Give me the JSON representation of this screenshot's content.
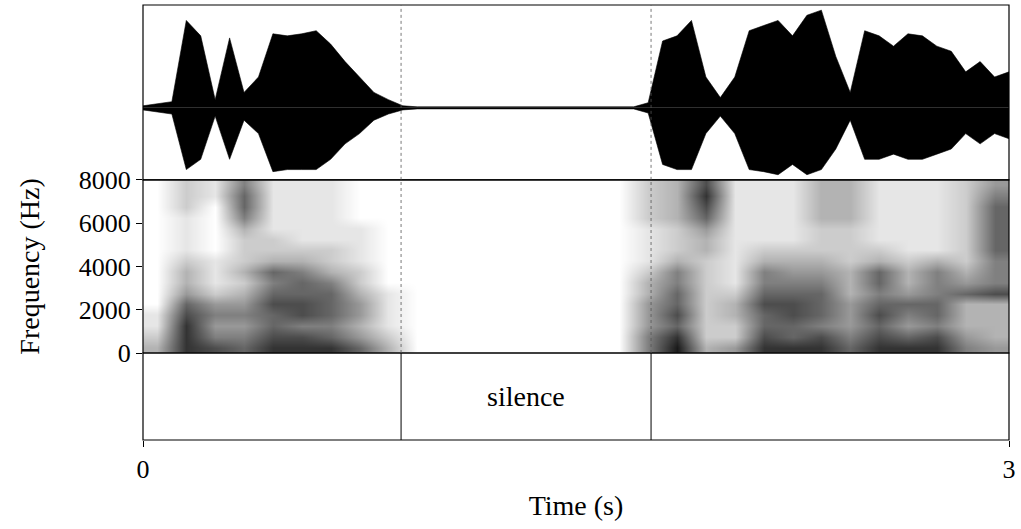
{
  "chart_data": [
    {
      "type": "area",
      "color": "#000000",
      "xlim": [
        0,
        3
      ],
      "ylim": [
        -0.7,
        1
      ],
      "tick_labels": false,
      "x": [
        0,
        0.05,
        0.1,
        0.15,
        0.2,
        0.25,
        0.3,
        0.35,
        0.4,
        0.45,
        0.5,
        0.55,
        0.6,
        0.65,
        0.7,
        0.75,
        0.8,
        0.85,
        0.9,
        0.95,
        1,
        1.05,
        1.1,
        1.15,
        1.2,
        1.25,
        1.3,
        1.35,
        1.4,
        1.45,
        1.5,
        1.55,
        1.6,
        1.65,
        1.7,
        1.75,
        1.8,
        1.85,
        1.9,
        1.95,
        2,
        2.05,
        2.1,
        2.15,
        2.2,
        2.25,
        2.3,
        2.35,
        2.4,
        2.45,
        2.5,
        2.55,
        2.6,
        2.65,
        2.7,
        2.75,
        2.8,
        2.85,
        2.9,
        2.95,
        3
      ],
      "max": [
        0.02,
        0.04,
        0.06,
        0.85,
        0.7,
        0.08,
        0.68,
        0.15,
        0.3,
        0.72,
        0.7,
        0.72,
        0.75,
        0.62,
        0.45,
        0.3,
        0.15,
        0.08,
        0.02,
        0.01,
        0.01,
        0.01,
        0.01,
        0.01,
        0.01,
        0.01,
        0.01,
        0.01,
        0.01,
        0.01,
        0.01,
        0.01,
        0.01,
        0.01,
        0.01,
        0.05,
        0.65,
        0.7,
        0.85,
        0.3,
        0.1,
        0.3,
        0.75,
        0.8,
        0.85,
        0.7,
        0.9,
        0.95,
        0.5,
        0.15,
        0.75,
        0.7,
        0.6,
        0.72,
        0.7,
        0.6,
        0.55,
        0.35,
        0.45,
        0.3,
        0.35
      ],
      "min": [
        -0.02,
        -0.04,
        -0.06,
        -0.6,
        -0.5,
        -0.08,
        -0.5,
        -0.12,
        -0.25,
        -0.62,
        -0.6,
        -0.6,
        -0.6,
        -0.5,
        -0.35,
        -0.25,
        -0.12,
        -0.06,
        -0.02,
        -0.01,
        -0.01,
        -0.01,
        -0.01,
        -0.01,
        -0.01,
        -0.01,
        -0.01,
        -0.01,
        -0.01,
        -0.01,
        -0.01,
        -0.01,
        -0.01,
        -0.01,
        -0.01,
        -0.05,
        -0.55,
        -0.6,
        -0.6,
        -0.25,
        -0.08,
        -0.25,
        -0.6,
        -0.62,
        -0.65,
        -0.55,
        -0.65,
        -0.6,
        -0.4,
        -0.12,
        -0.5,
        -0.5,
        -0.45,
        -0.5,
        -0.5,
        -0.45,
        -0.4,
        -0.25,
        -0.35,
        -0.25,
        -0.3
      ]
    },
    {
      "type": "heatmap",
      "y_label": "Frequency (Hz)",
      "xlim": [
        0,
        3
      ],
      "ylim": [
        0,
        8000
      ],
      "yticks": [
        0,
        2000,
        4000,
        6000,
        8000
      ],
      "tick_labels": "y",
      "color_range": [
        0,
        10
      ],
      "x": [
        0.05,
        0.15,
        0.25,
        0.35,
        0.45,
        0.55,
        0.65,
        0.75,
        0.85,
        0.95,
        1.05,
        1.15,
        1.25,
        1.35,
        1.45,
        1.55,
        1.65,
        1.75,
        1.85,
        1.95,
        2.05,
        2.15,
        2.25,
        2.35,
        2.45,
        2.55,
        2.65,
        2.75,
        2.85,
        2.95
      ],
      "y": [
        250,
        750,
        1250,
        1750,
        2250,
        2750,
        3250,
        3750,
        4250,
        4750,
        5250,
        5750,
        6250,
        6750,
        7250,
        7750
      ],
      "cells": [
        [
          3,
          8,
          7,
          6,
          8,
          8,
          8,
          6,
          3,
          0,
          0,
          0,
          0,
          0,
          0,
          0,
          0,
          5,
          9,
          3,
          4,
          8,
          8,
          8,
          6,
          8,
          8,
          8,
          5,
          4
        ],
        [
          2,
          8,
          5,
          5,
          7,
          7,
          6,
          4,
          2,
          0,
          0,
          0,
          0,
          0,
          0,
          0,
          0,
          5,
          8,
          2,
          2,
          7,
          6,
          7,
          5,
          7,
          6,
          7,
          4,
          3
        ],
        [
          1,
          8,
          4,
          4,
          6,
          5,
          5,
          3,
          1,
          0,
          0,
          0,
          0,
          0,
          0,
          0,
          0,
          4,
          6,
          2,
          2,
          6,
          6,
          5,
          4,
          6,
          4,
          5,
          3,
          3
        ],
        [
          1,
          7,
          5,
          5,
          6,
          7,
          6,
          4,
          1,
          0,
          0,
          0,
          0,
          0,
          0,
          0,
          0,
          4,
          7,
          2,
          3,
          6,
          7,
          6,
          4,
          7,
          5,
          6,
          3,
          3
        ],
        [
          0,
          6,
          4,
          4,
          7,
          7,
          6,
          4,
          1,
          0,
          0,
          0,
          0,
          0,
          0,
          0,
          0,
          4,
          6,
          2,
          3,
          7,
          7,
          6,
          4,
          6,
          6,
          6,
          3,
          3
        ],
        [
          0,
          4,
          2,
          3,
          6,
          6,
          6,
          3,
          1,
          0,
          0,
          0,
          0,
          0,
          0,
          0,
          0,
          3,
          6,
          2,
          2,
          6,
          6,
          6,
          3,
          5,
          4,
          5,
          6,
          7
        ],
        [
          0,
          3,
          1,
          2,
          5,
          6,
          5,
          2,
          0,
          0,
          0,
          0,
          0,
          0,
          0,
          0,
          0,
          3,
          5,
          2,
          1,
          5,
          5,
          5,
          3,
          6,
          3,
          5,
          4,
          5
        ],
        [
          0,
          3,
          1,
          3,
          6,
          5,
          3,
          2,
          0,
          0,
          0,
          0,
          0,
          0,
          0,
          0,
          0,
          2,
          5,
          2,
          1,
          5,
          4,
          4,
          3,
          6,
          3,
          5,
          3,
          5
        ],
        [
          0,
          2,
          1,
          2,
          3,
          3,
          2,
          1,
          0,
          0,
          0,
          0,
          0,
          0,
          0,
          0,
          0,
          1,
          3,
          2,
          1,
          3,
          3,
          3,
          2,
          3,
          2,
          3,
          2,
          5
        ],
        [
          0,
          1,
          0,
          2,
          2,
          2,
          2,
          1,
          0,
          0,
          0,
          0,
          0,
          0,
          0,
          0,
          0,
          1,
          2,
          3,
          1,
          2,
          2,
          2,
          2,
          2,
          1,
          1,
          2,
          6
        ],
        [
          0,
          1,
          0,
          2,
          2,
          1,
          1,
          1,
          0,
          0,
          0,
          0,
          0,
          0,
          0,
          0,
          0,
          1,
          2,
          3,
          1,
          1,
          1,
          2,
          2,
          1,
          1,
          1,
          2,
          6
        ],
        [
          0,
          1,
          0,
          3,
          1,
          1,
          1,
          1,
          0,
          0,
          0,
          0,
          0,
          0,
          0,
          0,
          0,
          1,
          2,
          4,
          1,
          1,
          1,
          2,
          2,
          1,
          1,
          1,
          2,
          6
        ],
        [
          0,
          1,
          0,
          5,
          1,
          1,
          1,
          0,
          0,
          0,
          0,
          0,
          0,
          0,
          0,
          0,
          0,
          2,
          3,
          6,
          1,
          1,
          1,
          3,
          3,
          1,
          1,
          1,
          2,
          6
        ],
        [
          0,
          2,
          0,
          6,
          1,
          1,
          1,
          0,
          0,
          0,
          0,
          0,
          0,
          0,
          0,
          0,
          0,
          2,
          3,
          7,
          1,
          1,
          1,
          3,
          3,
          1,
          1,
          1,
          2,
          6
        ],
        [
          0,
          2,
          1,
          6,
          1,
          1,
          1,
          0,
          0,
          0,
          0,
          0,
          0,
          0,
          0,
          0,
          0,
          2,
          3,
          8,
          1,
          1,
          1,
          3,
          3,
          1,
          1,
          1,
          2,
          5
        ],
        [
          0,
          2,
          1,
          5,
          1,
          1,
          1,
          0,
          0,
          0,
          0,
          0,
          0,
          0,
          0,
          0,
          0,
          2,
          3,
          7,
          1,
          1,
          1,
          3,
          3,
          1,
          1,
          1,
          2,
          4
        ]
      ]
    },
    {
      "type": "tier",
      "x_label": "Time (s)",
      "xlim": [
        0,
        3
      ],
      "xticks": [
        0,
        3
      ],
      "tick_labels": "x",
      "intervals": [
        {
          "start": 0.894,
          "end": 1.76,
          "label": "silence"
        }
      ]
    }
  ]
}
